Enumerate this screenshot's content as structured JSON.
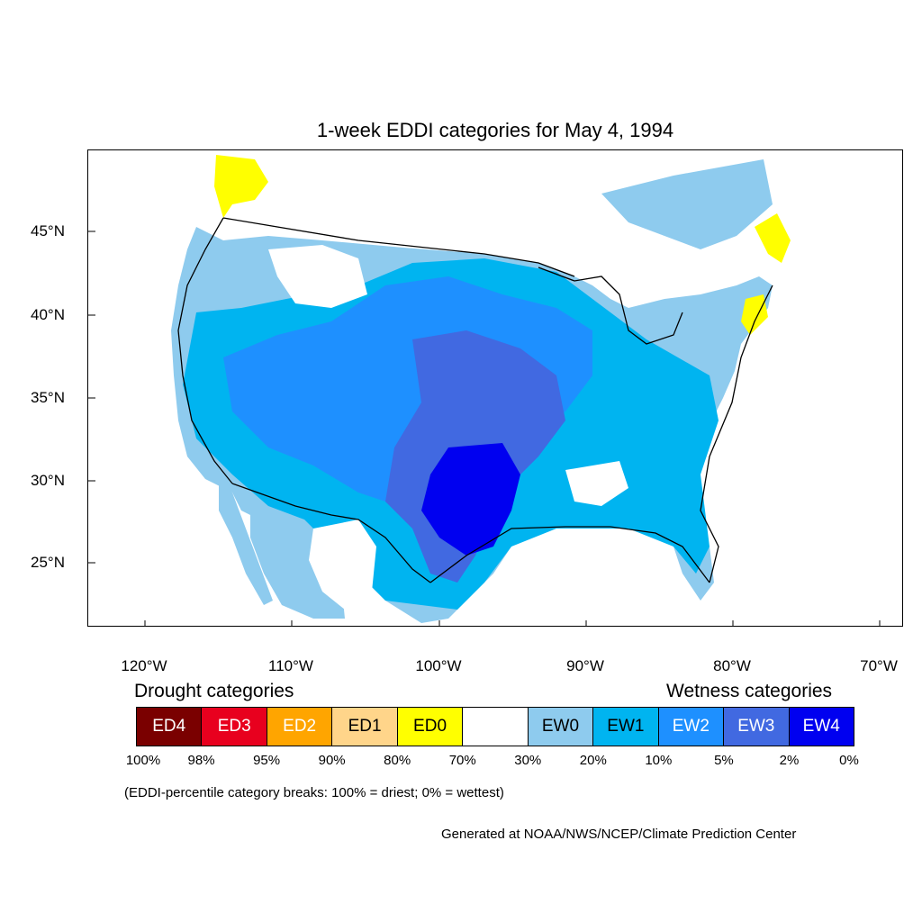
{
  "title": "1-week EDDI categories for May 4, 1994",
  "lat_labels": [
    "45°N",
    "40°N",
    "35°N",
    "30°N",
    "25°N"
  ],
  "lon_labels": [
    "120°W",
    "110°W",
    "100°W",
    "90°W",
    "80°W",
    "70°W"
  ],
  "legend": {
    "drought_heading": "Drought categories",
    "wetness_heading": "Wetness categories",
    "categories": [
      {
        "label": "ED4",
        "color": "#7a0000",
        "text_color": "#ffffff"
      },
      {
        "label": "ED3",
        "color": "#e8001e",
        "text_color": "#ffffff"
      },
      {
        "label": "ED2",
        "color": "#ffa500",
        "text_color": "#ffffff"
      },
      {
        "label": "ED1",
        "color": "#ffd58a",
        "text_color": "#000000"
      },
      {
        "label": "ED0",
        "color": "#ffff00",
        "text_color": "#000000"
      },
      {
        "label": "",
        "color": "#ffffff",
        "text_color": "#000000"
      },
      {
        "label": "EW0",
        "color": "#8ecbee",
        "text_color": "#000000"
      },
      {
        "label": "EW1",
        "color": "#00b4f0",
        "text_color": "#000000"
      },
      {
        "label": "EW2",
        "color": "#1e90ff",
        "text_color": "#ffffff"
      },
      {
        "label": "EW3",
        "color": "#4169e1",
        "text_color": "#ffffff"
      },
      {
        "label": "EW4",
        "color": "#0000f0",
        "text_color": "#ffffff"
      }
    ],
    "breaks": [
      "100%",
      "98%",
      "95%",
      "90%",
      "80%",
      "70%",
      "30%",
      "20%",
      "10%",
      "5%",
      "2%",
      "0%"
    ]
  },
  "note": "(EDDI-percentile category breaks: 100% = driest; 0% = wettest)",
  "credit": "Generated at NOAA/NWS/NCEP/Climate Prediction Center"
}
